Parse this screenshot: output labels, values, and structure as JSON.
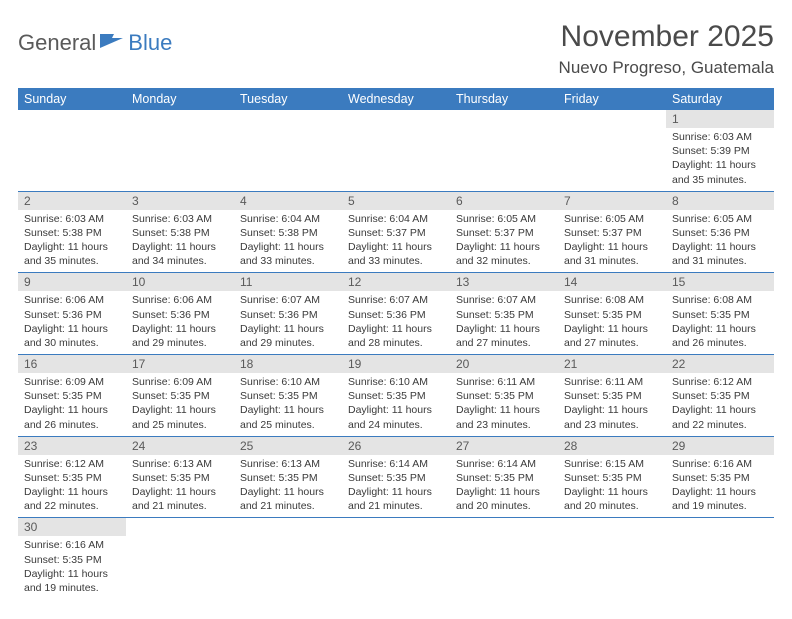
{
  "logo": {
    "part1": "General",
    "part2": "Blue"
  },
  "title": "November 2025",
  "location": "Nuevo Progreso, Guatemala",
  "colors": {
    "header_bg": "#3b7bbf",
    "header_text": "#ffffff",
    "daynum_bg": "#e4e4e4",
    "row_border": "#3b7bbf",
    "text": "#3a3a3a"
  },
  "day_headers": [
    "Sunday",
    "Monday",
    "Tuesday",
    "Wednesday",
    "Thursday",
    "Friday",
    "Saturday"
  ],
  "weeks": [
    [
      null,
      null,
      null,
      null,
      null,
      null,
      {
        "n": "1",
        "sr": "6:03 AM",
        "ss": "5:39 PM",
        "dl": "11 hours and 35 minutes."
      }
    ],
    [
      {
        "n": "2",
        "sr": "6:03 AM",
        "ss": "5:38 PM",
        "dl": "11 hours and 35 minutes."
      },
      {
        "n": "3",
        "sr": "6:03 AM",
        "ss": "5:38 PM",
        "dl": "11 hours and 34 minutes."
      },
      {
        "n": "4",
        "sr": "6:04 AM",
        "ss": "5:38 PM",
        "dl": "11 hours and 33 minutes."
      },
      {
        "n": "5",
        "sr": "6:04 AM",
        "ss": "5:37 PM",
        "dl": "11 hours and 33 minutes."
      },
      {
        "n": "6",
        "sr": "6:05 AM",
        "ss": "5:37 PM",
        "dl": "11 hours and 32 minutes."
      },
      {
        "n": "7",
        "sr": "6:05 AM",
        "ss": "5:37 PM",
        "dl": "11 hours and 31 minutes."
      },
      {
        "n": "8",
        "sr": "6:05 AM",
        "ss": "5:36 PM",
        "dl": "11 hours and 31 minutes."
      }
    ],
    [
      {
        "n": "9",
        "sr": "6:06 AM",
        "ss": "5:36 PM",
        "dl": "11 hours and 30 minutes."
      },
      {
        "n": "10",
        "sr": "6:06 AM",
        "ss": "5:36 PM",
        "dl": "11 hours and 29 minutes."
      },
      {
        "n": "11",
        "sr": "6:07 AM",
        "ss": "5:36 PM",
        "dl": "11 hours and 29 minutes."
      },
      {
        "n": "12",
        "sr": "6:07 AM",
        "ss": "5:36 PM",
        "dl": "11 hours and 28 minutes."
      },
      {
        "n": "13",
        "sr": "6:07 AM",
        "ss": "5:35 PM",
        "dl": "11 hours and 27 minutes."
      },
      {
        "n": "14",
        "sr": "6:08 AM",
        "ss": "5:35 PM",
        "dl": "11 hours and 27 minutes."
      },
      {
        "n": "15",
        "sr": "6:08 AM",
        "ss": "5:35 PM",
        "dl": "11 hours and 26 minutes."
      }
    ],
    [
      {
        "n": "16",
        "sr": "6:09 AM",
        "ss": "5:35 PM",
        "dl": "11 hours and 26 minutes."
      },
      {
        "n": "17",
        "sr": "6:09 AM",
        "ss": "5:35 PM",
        "dl": "11 hours and 25 minutes."
      },
      {
        "n": "18",
        "sr": "6:10 AM",
        "ss": "5:35 PM",
        "dl": "11 hours and 25 minutes."
      },
      {
        "n": "19",
        "sr": "6:10 AM",
        "ss": "5:35 PM",
        "dl": "11 hours and 24 minutes."
      },
      {
        "n": "20",
        "sr": "6:11 AM",
        "ss": "5:35 PM",
        "dl": "11 hours and 23 minutes."
      },
      {
        "n": "21",
        "sr": "6:11 AM",
        "ss": "5:35 PM",
        "dl": "11 hours and 23 minutes."
      },
      {
        "n": "22",
        "sr": "6:12 AM",
        "ss": "5:35 PM",
        "dl": "11 hours and 22 minutes."
      }
    ],
    [
      {
        "n": "23",
        "sr": "6:12 AM",
        "ss": "5:35 PM",
        "dl": "11 hours and 22 minutes."
      },
      {
        "n": "24",
        "sr": "6:13 AM",
        "ss": "5:35 PM",
        "dl": "11 hours and 21 minutes."
      },
      {
        "n": "25",
        "sr": "6:13 AM",
        "ss": "5:35 PM",
        "dl": "11 hours and 21 minutes."
      },
      {
        "n": "26",
        "sr": "6:14 AM",
        "ss": "5:35 PM",
        "dl": "11 hours and 21 minutes."
      },
      {
        "n": "27",
        "sr": "6:14 AM",
        "ss": "5:35 PM",
        "dl": "11 hours and 20 minutes."
      },
      {
        "n": "28",
        "sr": "6:15 AM",
        "ss": "5:35 PM",
        "dl": "11 hours and 20 minutes."
      },
      {
        "n": "29",
        "sr": "6:16 AM",
        "ss": "5:35 PM",
        "dl": "11 hours and 19 minutes."
      }
    ],
    [
      {
        "n": "30",
        "sr": "6:16 AM",
        "ss": "5:35 PM",
        "dl": "11 hours and 19 minutes."
      },
      null,
      null,
      null,
      null,
      null,
      null
    ]
  ],
  "labels": {
    "sunrise": "Sunrise: ",
    "sunset": "Sunset: ",
    "daylight": "Daylight: "
  }
}
